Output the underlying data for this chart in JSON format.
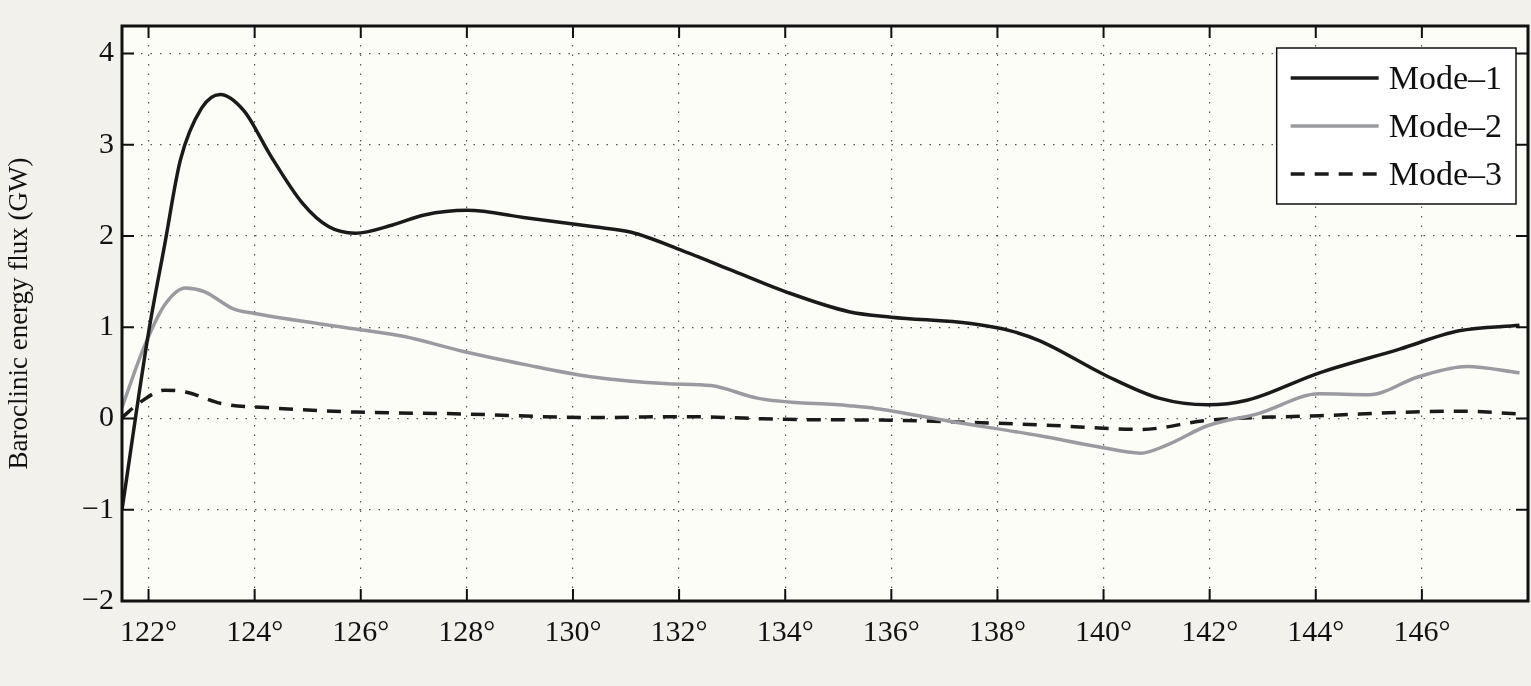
{
  "chart_data": {
    "type": "line",
    "ylabel": "Baroclinic energy flux (GW)",
    "xlim": [
      121.5,
      148
    ],
    "ylim": [
      -2,
      4.3
    ],
    "xticks": [
      {
        "value": 122,
        "label": "122°"
      },
      {
        "value": 124,
        "label": "124°"
      },
      {
        "value": 126,
        "label": "126°"
      },
      {
        "value": 128,
        "label": "128°"
      },
      {
        "value": 130,
        "label": "130°"
      },
      {
        "value": 132,
        "label": "132°"
      },
      {
        "value": 134,
        "label": "134°"
      },
      {
        "value": 136,
        "label": "136°"
      },
      {
        "value": 138,
        "label": "138°"
      },
      {
        "value": 140,
        "label": "140°"
      },
      {
        "value": 142,
        "label": "142°"
      },
      {
        "value": 144,
        "label": "144°"
      },
      {
        "value": 146,
        "label": "146°"
      }
    ],
    "yticks": [
      {
        "value": -2,
        "label": "−2"
      },
      {
        "value": -1,
        "label": "−1"
      },
      0,
      1,
      2,
      3,
      4
    ],
    "grid": true,
    "legend": "top right",
    "marker": "none",
    "series": [
      {
        "name": "Mode–1",
        "color": "#1a1a1a",
        "line_style": "solid",
        "x": [
          121.5,
          122.0,
          122.3,
          122.6,
          123.0,
          123.35,
          123.8,
          124.3,
          124.9,
          125.4,
          125.9,
          126.6,
          127.2,
          128.0,
          129.1,
          130.4,
          131.1,
          132.06,
          132.96,
          134.0,
          135.2,
          136.0,
          137.5,
          138.25,
          138.8,
          140.08,
          141.06,
          141.96,
          142.7,
          144.07,
          145.58,
          146.7,
          147.84
        ],
        "values": [
          -1.0,
          0.94,
          1.89,
          2.83,
          3.4,
          3.55,
          3.37,
          2.88,
          2.36,
          2.1,
          2.03,
          2.12,
          2.23,
          2.28,
          2.2,
          2.1,
          2.04,
          1.84,
          1.63,
          1.39,
          1.17,
          1.11,
          1.04,
          0.96,
          0.85,
          0.46,
          0.22,
          0.15,
          0.2,
          0.5,
          0.76,
          0.96,
          1.02
        ]
      },
      {
        "name": "Mode–2",
        "color": "#999ba0",
        "line_style": "solid",
        "x": [
          121.5,
          121.9,
          122.3,
          122.7,
          123.05,
          123.6,
          124.0,
          125.9,
          126.8,
          127.9,
          129.1,
          130.3,
          131.8,
          132.6,
          133.5,
          135.2,
          135.7,
          137.1,
          138.8,
          139.9,
          140.7,
          141.2,
          141.96,
          142.9,
          144.07,
          145.0,
          145.95,
          146.85,
          147.84
        ],
        "values": [
          0.12,
          0.76,
          1.24,
          1.43,
          1.39,
          1.2,
          1.15,
          0.98,
          0.9,
          0.74,
          0.59,
          0.46,
          0.38,
          0.36,
          0.22,
          0.14,
          0.11,
          -0.03,
          -0.19,
          -0.31,
          -0.38,
          -0.29,
          -0.08,
          0.05,
          0.27,
          0.26,
          0.46,
          0.57,
          0.5
        ]
      },
      {
        "name": "Mode–3",
        "color": "#1a1a1a",
        "line_style": "dashed",
        "x": [
          121.5,
          121.85,
          122.3,
          122.7,
          123.4,
          124.2,
          125.9,
          127.9,
          130.3,
          132.06,
          134.0,
          136.0,
          138.8,
          140.7,
          141.96,
          144.07,
          146.7,
          147.84
        ],
        "values": [
          0.01,
          0.18,
          0.31,
          0.29,
          0.16,
          0.12,
          0.07,
          0.05,
          0.01,
          0.02,
          -0.01,
          -0.02,
          -0.07,
          -0.12,
          -0.02,
          0.03,
          0.08,
          0.05
        ]
      }
    ]
  }
}
